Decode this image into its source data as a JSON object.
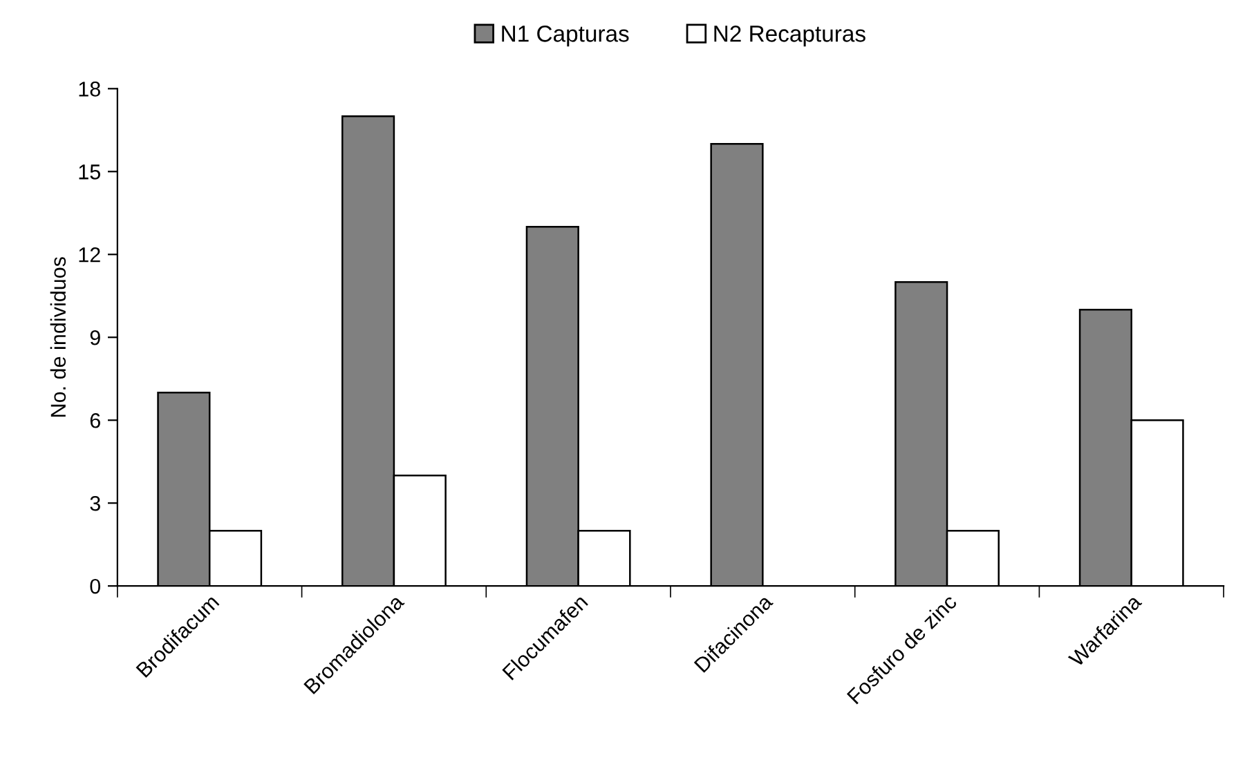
{
  "chart_data": {
    "type": "bar",
    "ylabel": "No. de individuos",
    "categories": [
      "Brodifacum",
      "Bromadiolona",
      "Flocumafen",
      "Difacinona",
      "Fosfuro de zinc",
      "Warfarina"
    ],
    "series": [
      {
        "name": "N1 Capturas",
        "color": "#808080",
        "values": [
          7,
          17,
          13,
          16,
          11,
          10
        ]
      },
      {
        "name": "N2 Recapturas",
        "color": "#ffffff",
        "values": [
          2,
          4,
          2,
          null,
          2,
          6
        ]
      }
    ],
    "ylim": [
      0,
      18
    ],
    "yticks": [
      0,
      3,
      6,
      9,
      12,
      15,
      18
    ],
    "grid": false,
    "legend": "top"
  }
}
